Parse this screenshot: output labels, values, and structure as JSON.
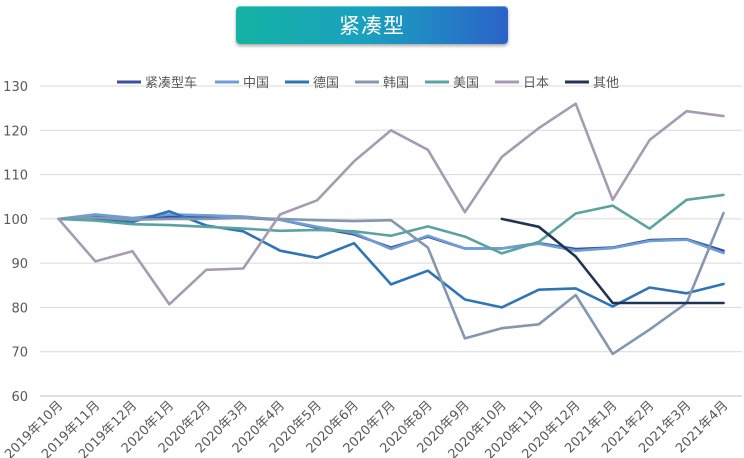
{
  "chart_data": {
    "type": "line",
    "title": "紧凑型",
    "xlabel": "",
    "ylabel": "",
    "ylim": [
      60,
      130
    ],
    "yticks": [
      60,
      70,
      80,
      90,
      100,
      110,
      120,
      130
    ],
    "grid": "horizontal",
    "legend_position": "top",
    "categories": [
      "2019年10月",
      "2019年11月",
      "2019年12月",
      "2020年1月",
      "2020年2月",
      "2020年3月",
      "2020年4月",
      "2020年5月",
      "2020年6月",
      "2020年7月",
      "2020年8月",
      "2020年9月",
      "2020年10月",
      "2020年11月",
      "2020年12月",
      "2021年1月",
      "2021年2月",
      "2021年3月",
      "2021年4月"
    ],
    "series": [
      {
        "name": "紧凑型车",
        "color": "#3b4fa0",
        "values": [
          100,
          100.5,
          100,
          100.5,
          100.5,
          100.2,
          99.8,
          98,
          96.5,
          93.5,
          96,
          93.3,
          93.3,
          94.5,
          93.2,
          93.5,
          95.2,
          95.4,
          92.8
        ]
      },
      {
        "name": "中国",
        "color": "#6d9ed6",
        "values": [
          100,
          101,
          100.2,
          101,
          100.8,
          100.5,
          99.8,
          98.2,
          96.8,
          93.2,
          96.2,
          93.3,
          93.3,
          94.4,
          92.8,
          93.4,
          95,
          95.3,
          92.3
        ]
      },
      {
        "name": "德国",
        "color": "#2e75b6",
        "values": [
          100,
          99.8,
          99.3,
          101.7,
          98.5,
          97.2,
          92.8,
          91.2,
          94.5,
          85.2,
          88.3,
          81.8,
          80,
          84,
          84.3,
          80.2,
          84.5,
          83.2,
          85.3
        ]
      },
      {
        "name": "韩国",
        "color": "#8497b0",
        "values": [
          100,
          100.3,
          99.8,
          100,
          100,
          100.2,
          100,
          99.7,
          99.5,
          99.7,
          93.5,
          73,
          75.3,
          76.2,
          82.8,
          69.5,
          75,
          81,
          101.3
        ]
      },
      {
        "name": "美国",
        "color": "#5ba3a0",
        "values": [
          100,
          99.6,
          98.8,
          98.6,
          98.2,
          97.8,
          97.3,
          97.5,
          97.2,
          96.2,
          98.3,
          96,
          92.2,
          94.8,
          101.2,
          103,
          97.8,
          104.3,
          105.4
        ]
      },
      {
        "name": "日本",
        "color": "#a79bb4",
        "values": [
          100,
          90.4,
          92.7,
          80.7,
          88.5,
          88.8,
          101,
          104.2,
          113,
          120,
          115.6,
          101.5,
          114,
          120.5,
          126,
          104.3,
          117.8,
          124.3,
          123.2
        ]
      },
      {
        "name": "其他",
        "color": "#1f3354",
        "values": [
          null,
          null,
          null,
          null,
          null,
          null,
          null,
          null,
          null,
          null,
          null,
          null,
          100,
          98.2,
          91.5,
          81,
          81,
          81,
          81
        ]
      }
    ]
  }
}
